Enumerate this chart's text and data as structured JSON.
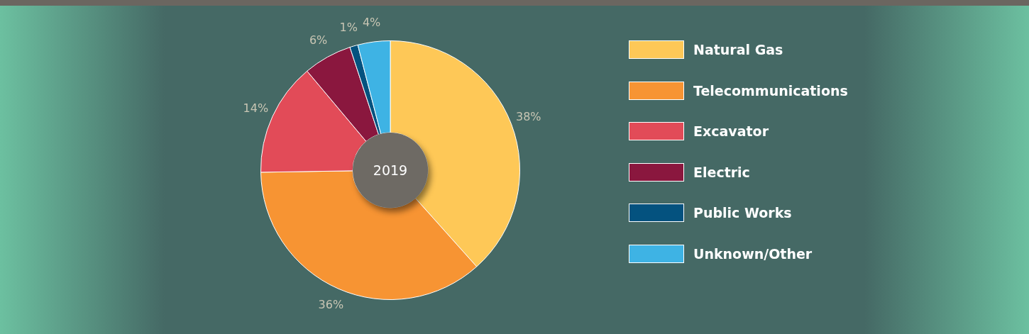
{
  "chart_data": {
    "type": "donut",
    "categories": [
      "Natural Gas",
      "Telecommunications",
      "Excavator",
      "Electric",
      "Public Works",
      "Unknown/Other"
    ],
    "values": [
      38,
      36,
      14,
      6,
      1,
      4
    ],
    "colors": [
      "#fec857",
      "#f79433",
      "#e24b58",
      "#8a173e",
      "#04527f",
      "#3eb3e4"
    ],
    "value_labels": [
      "38%",
      "36%",
      "14%",
      "6%",
      "1%",
      "4%"
    ],
    "annotations": [
      "2019"
    ],
    "legend": "right"
  }
}
